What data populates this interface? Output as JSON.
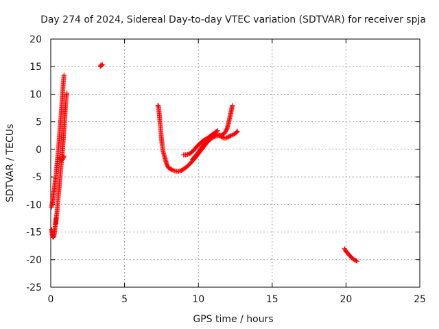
{
  "chart_data": {
    "type": "scatter",
    "title": "Day 274 of 2024, Sidereal Day-to-day VTEC variation (SDTVAR) for receiver spja",
    "xlabel": "GPS time / hours",
    "ylabel": "SDTVAR / TECUs",
    "xlim": [
      0,
      25
    ],
    "ylim": [
      -25,
      20
    ],
    "xticks": [
      0,
      5,
      10,
      15,
      20,
      25
    ],
    "yticks": [
      -25,
      -20,
      -15,
      -10,
      -5,
      0,
      5,
      10,
      15,
      20
    ],
    "grid": true,
    "marker": "plus",
    "marker_color": "#ff0000",
    "series": [
      {
        "segments": [
          [
            [
              0.05,
              -14.5
            ],
            [
              0.1,
              -15.5
            ],
            [
              0.15,
              -16.0
            ],
            [
              0.2,
              -15.8
            ],
            [
              0.25,
              -15.2
            ],
            [
              0.3,
              -14.0
            ],
            [
              0.35,
              -12.5
            ]
          ],
          [
            [
              0.05,
              -10.5
            ],
            [
              0.1,
              -9.8
            ],
            [
              0.15,
              -9.0
            ],
            [
              0.2,
              -8.0
            ],
            [
              0.25,
              -7.0
            ],
            [
              0.3,
              -5.8
            ],
            [
              0.35,
              -4.8
            ],
            [
              0.4,
              -3.5
            ],
            [
              0.45,
              -2.0
            ],
            [
              0.5,
              -0.5
            ],
            [
              0.55,
              1.0
            ],
            [
              0.6,
              2.8
            ],
            [
              0.65,
              4.5
            ],
            [
              0.7,
              6.2
            ],
            [
              0.75,
              8.0
            ],
            [
              0.8,
              10.0
            ],
            [
              0.85,
              12.0
            ],
            [
              0.9,
              13.5
            ]
          ],
          [
            [
              0.35,
              -13.5
            ],
            [
              0.4,
              -12.0
            ],
            [
              0.45,
              -10.5
            ],
            [
              0.5,
              -9.0
            ],
            [
              0.55,
              -7.5
            ],
            [
              0.6,
              -6.0
            ],
            [
              0.65,
              -4.5
            ],
            [
              0.7,
              -3.0
            ],
            [
              0.75,
              -1.5
            ],
            [
              0.8,
              0.0
            ],
            [
              0.85,
              1.8
            ],
            [
              0.9,
              3.8
            ],
            [
              0.95,
              5.8
            ],
            [
              1.0,
              7.8
            ],
            [
              1.05,
              9.5
            ],
            [
              1.1,
              10.2
            ]
          ],
          [
            [
              0.6,
              -1.5
            ],
            [
              0.7,
              -2.0
            ],
            [
              0.8,
              -1.8
            ],
            [
              0.9,
              -1.2
            ]
          ]
        ]
      },
      {
        "segments": [
          [
            [
              3.35,
              15.0
            ],
            [
              3.4,
              15.3
            ],
            [
              3.45,
              15.2
            ],
            [
              3.5,
              15.4
            ]
          ]
        ]
      },
      {
        "segments": [
          [
            [
              7.25,
              8.0
            ],
            [
              7.3,
              7.8
            ],
            [
              7.35,
              6.5
            ],
            [
              7.4,
              5.0
            ],
            [
              7.45,
              3.5
            ],
            [
              7.5,
              2.0
            ],
            [
              7.55,
              0.8
            ],
            [
              7.6,
              -0.3
            ],
            [
              7.7,
              -1.2
            ],
            [
              7.8,
              -2.2
            ],
            [
              7.9,
              -3.0
            ],
            [
              8.0,
              -3.4
            ],
            [
              8.2,
              -3.7
            ],
            [
              8.4,
              -3.9
            ],
            [
              8.6,
              -4.0
            ],
            [
              8.8,
              -3.9
            ],
            [
              9.0,
              -3.6
            ],
            [
              9.2,
              -3.2
            ],
            [
              9.4,
              -2.7
            ],
            [
              9.6,
              -2.1
            ],
            [
              9.8,
              -1.5
            ],
            [
              10.0,
              -0.8
            ],
            [
              10.2,
              -0.1
            ],
            [
              10.4,
              0.6
            ],
            [
              10.6,
              1.3
            ],
            [
              10.8,
              1.8
            ],
            [
              11.0,
              2.2
            ],
            [
              11.2,
              2.4
            ],
            [
              11.4,
              2.5
            ],
            [
              11.6,
              2.6
            ],
            [
              11.8,
              3.0
            ],
            [
              11.95,
              3.8
            ],
            [
              12.05,
              4.8
            ],
            [
              12.15,
              6.0
            ],
            [
              12.25,
              7.2
            ],
            [
              12.3,
              8.0
            ]
          ],
          [
            [
              9.0,
              -1.0
            ],
            [
              9.2,
              -1.0
            ],
            [
              9.4,
              -0.8
            ],
            [
              9.6,
              -0.4
            ],
            [
              9.8,
              0.2
            ],
            [
              10.0,
              0.8
            ],
            [
              10.2,
              1.3
            ],
            [
              10.4,
              1.7
            ],
            [
              10.6,
              2.0
            ],
            [
              10.8,
              2.4
            ],
            [
              11.0,
              2.8
            ],
            [
              11.2,
              3.2
            ],
            [
              11.3,
              3.4
            ]
          ],
          [
            [
              9.6,
              -1.8
            ],
            [
              9.8,
              -1.2
            ],
            [
              10.0,
              -0.5
            ],
            [
              10.2,
              0.3
            ],
            [
              10.4,
              1.0
            ],
            [
              10.6,
              1.5
            ],
            [
              10.8,
              2.0
            ],
            [
              11.0,
              2.4
            ],
            [
              11.2,
              2.7
            ],
            [
              11.4,
              2.6
            ],
            [
              11.6,
              2.2
            ],
            [
              11.8,
              2.0
            ],
            [
              12.0,
              2.2
            ],
            [
              12.2,
              2.5
            ],
            [
              12.4,
              2.7
            ],
            [
              12.55,
              3.0
            ],
            [
              12.65,
              3.3
            ]
          ]
        ]
      },
      {
        "segments": [
          [
            [
              19.9,
              -18.0
            ],
            [
              20.0,
              -18.5
            ],
            [
              20.1,
              -18.8
            ],
            [
              20.2,
              -19.1
            ],
            [
              20.3,
              -19.4
            ],
            [
              20.4,
              -19.7
            ],
            [
              20.5,
              -19.9
            ],
            [
              20.6,
              -20.1
            ],
            [
              20.7,
              -20.2
            ],
            [
              20.75,
              -20.3
            ]
          ]
        ]
      }
    ]
  }
}
